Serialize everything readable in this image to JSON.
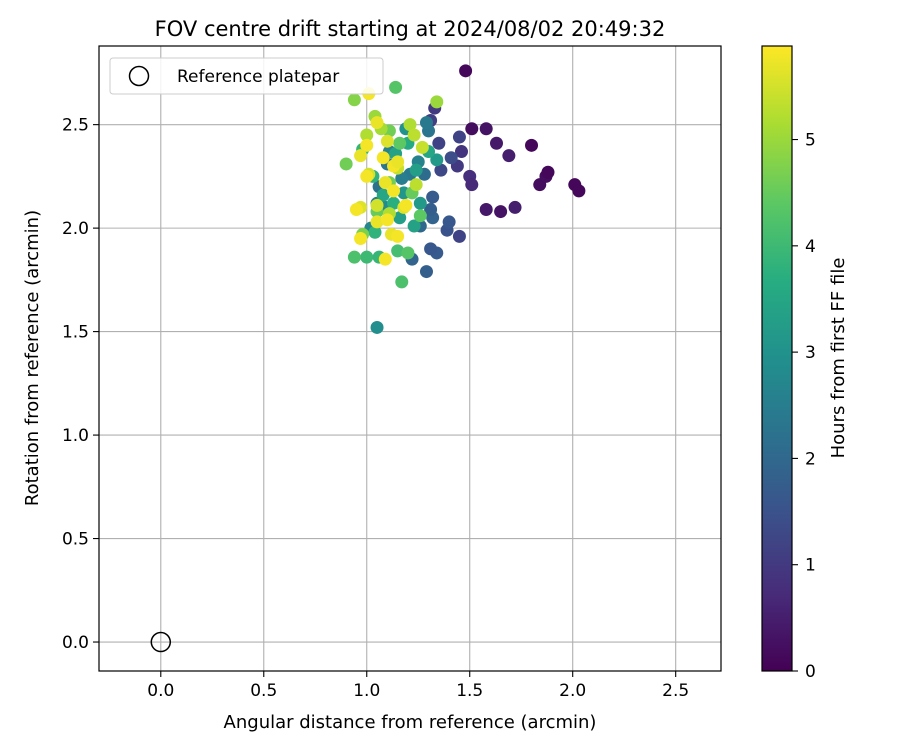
{
  "chart_data": {
    "type": "scatter",
    "title": "FOV centre drift starting at 2024/08/02 20:49:32",
    "xlabel": "Angular distance from reference (arcmin)",
    "ylabel": "Rotation from reference (arcmin)",
    "xlim": [
      -0.3,
      2.72
    ],
    "ylim": [
      -0.14,
      2.88
    ],
    "xticks": [
      0.0,
      0.5,
      1.0,
      1.5,
      2.0,
      2.5
    ],
    "yticks": [
      0.0,
      0.5,
      1.0,
      1.5,
      2.0,
      2.5
    ],
    "xtick_labels": [
      "0.0",
      "0.5",
      "1.0",
      "1.5",
      "2.0",
      "2.5"
    ],
    "ytick_labels": [
      "0.0",
      "0.5",
      "1.0",
      "1.5",
      "2.0",
      "2.5"
    ],
    "grid": true,
    "legend": {
      "position": "top-left",
      "entries": [
        "Reference platepar"
      ]
    },
    "colorbar": {
      "label": "Hours from first FF file",
      "colormap": "viridis",
      "range": [
        0,
        5.88
      ],
      "ticks": [
        0,
        1,
        2,
        3,
        4,
        5
      ],
      "tick_labels": [
        "0",
        "1",
        "2",
        "3",
        "4",
        "5"
      ]
    },
    "reference_point": {
      "x": 0.0,
      "y": 0.0,
      "name": "Reference platepar"
    },
    "points": [
      {
        "x": 1.48,
        "y": 2.76,
        "h": 0.1
      },
      {
        "x": 1.51,
        "y": 2.48,
        "h": 0.2
      },
      {
        "x": 1.58,
        "y": 2.48,
        "h": 0.3
      },
      {
        "x": 1.63,
        "y": 2.41,
        "h": 0.4
      },
      {
        "x": 1.69,
        "y": 2.35,
        "h": 0.5
      },
      {
        "x": 1.8,
        "y": 2.4,
        "h": 0.1
      },
      {
        "x": 1.84,
        "y": 2.21,
        "h": 0.2
      },
      {
        "x": 1.87,
        "y": 2.25,
        "h": 0.2
      },
      {
        "x": 1.88,
        "y": 2.27,
        "h": 0.1
      },
      {
        "x": 2.01,
        "y": 2.21,
        "h": 0.1
      },
      {
        "x": 2.03,
        "y": 2.18,
        "h": 0.1
      },
      {
        "x": 1.58,
        "y": 2.09,
        "h": 0.4
      },
      {
        "x": 1.65,
        "y": 2.08,
        "h": 0.3
      },
      {
        "x": 1.72,
        "y": 2.1,
        "h": 0.5
      },
      {
        "x": 1.5,
        "y": 2.25,
        "h": 0.8
      },
      {
        "x": 1.51,
        "y": 2.21,
        "h": 0.7
      },
      {
        "x": 1.46,
        "y": 2.37,
        "h": 0.9
      },
      {
        "x": 1.44,
        "y": 2.3,
        "h": 1.0
      },
      {
        "x": 1.45,
        "y": 2.44,
        "h": 1.2
      },
      {
        "x": 1.33,
        "y": 2.58,
        "h": 1.0
      },
      {
        "x": 1.31,
        "y": 2.52,
        "h": 1.1
      },
      {
        "x": 1.35,
        "y": 2.41,
        "h": 1.2
      },
      {
        "x": 1.36,
        "y": 2.28,
        "h": 1.3
      },
      {
        "x": 1.41,
        "y": 2.34,
        "h": 1.4
      },
      {
        "x": 1.45,
        "y": 1.96,
        "h": 1.2
      },
      {
        "x": 1.39,
        "y": 1.99,
        "h": 1.5
      },
      {
        "x": 1.4,
        "y": 2.03,
        "h": 1.6
      },
      {
        "x": 1.34,
        "y": 1.88,
        "h": 1.7
      },
      {
        "x": 1.31,
        "y": 1.9,
        "h": 1.6
      },
      {
        "x": 1.29,
        "y": 1.79,
        "h": 1.8
      },
      {
        "x": 1.22,
        "y": 1.85,
        "h": 1.9
      },
      {
        "x": 1.32,
        "y": 2.15,
        "h": 1.7
      },
      {
        "x": 1.26,
        "y": 2.01,
        "h": 2.0
      },
      {
        "x": 1.32,
        "y": 2.05,
        "h": 1.9
      },
      {
        "x": 1.31,
        "y": 2.09,
        "h": 1.8
      },
      {
        "x": 1.28,
        "y": 2.26,
        "h": 2.1
      },
      {
        "x": 1.3,
        "y": 2.47,
        "h": 2.3
      },
      {
        "x": 1.29,
        "y": 2.51,
        "h": 2.4
      },
      {
        "x": 1.25,
        "y": 2.32,
        "h": 2.6
      },
      {
        "x": 1.21,
        "y": 2.26,
        "h": 2.4
      },
      {
        "x": 1.17,
        "y": 2.24,
        "h": 2.5
      },
      {
        "x": 1.14,
        "y": 2.3,
        "h": 2.7
      },
      {
        "x": 1.1,
        "y": 2.31,
        "h": 2.3
      },
      {
        "x": 1.11,
        "y": 2.37,
        "h": 2.6
      },
      {
        "x": 1.06,
        "y": 2.2,
        "h": 2.2
      },
      {
        "x": 1.05,
        "y": 2.12,
        "h": 2.5
      },
      {
        "x": 1.09,
        "y": 2.1,
        "h": 2.8
      },
      {
        "x": 1.02,
        "y": 2.0,
        "h": 2.7
      },
      {
        "x": 1.05,
        "y": 1.52,
        "h": 2.9
      },
      {
        "x": 1.19,
        "y": 2.48,
        "h": 3.0
      },
      {
        "x": 1.26,
        "y": 2.12,
        "h": 3.2
      },
      {
        "x": 1.18,
        "y": 2.17,
        "h": 3.1
      },
      {
        "x": 1.16,
        "y": 2.05,
        "h": 3.3
      },
      {
        "x": 1.23,
        "y": 2.01,
        "h": 3.4
      },
      {
        "x": 1.34,
        "y": 2.33,
        "h": 3.2
      },
      {
        "x": 1.3,
        "y": 2.37,
        "h": 3.5
      },
      {
        "x": 1.24,
        "y": 2.28,
        "h": 3.3
      },
      {
        "x": 1.2,
        "y": 2.41,
        "h": 3.6
      },
      {
        "x": 1.14,
        "y": 2.36,
        "h": 3.4
      },
      {
        "x": 1.13,
        "y": 2.12,
        "h": 3.7
      },
      {
        "x": 1.08,
        "y": 2.16,
        "h": 3.5
      },
      {
        "x": 1.03,
        "y": 2.25,
        "h": 3.8
      },
      {
        "x": 0.98,
        "y": 2.38,
        "h": 3.9
      },
      {
        "x": 1.04,
        "y": 1.98,
        "h": 3.8
      },
      {
        "x": 1.0,
        "y": 1.86,
        "h": 4.0
      },
      {
        "x": 0.94,
        "y": 1.86,
        "h": 4.2
      },
      {
        "x": 1.06,
        "y": 1.86,
        "h": 3.9
      },
      {
        "x": 1.15,
        "y": 1.89,
        "h": 4.1
      },
      {
        "x": 1.2,
        "y": 1.88,
        "h": 4.3
      },
      {
        "x": 1.17,
        "y": 1.74,
        "h": 4.2
      },
      {
        "x": 1.14,
        "y": 2.68,
        "h": 4.3
      },
      {
        "x": 1.16,
        "y": 2.41,
        "h": 4.4
      },
      {
        "x": 1.22,
        "y": 2.17,
        "h": 4.5
      },
      {
        "x": 1.26,
        "y": 2.06,
        "h": 4.4
      },
      {
        "x": 1.11,
        "y": 2.22,
        "h": 4.6
      },
      {
        "x": 1.05,
        "y": 2.08,
        "h": 4.5
      },
      {
        "x": 0.98,
        "y": 1.97,
        "h": 4.7
      },
      {
        "x": 1.11,
        "y": 2.47,
        "h": 4.6
      },
      {
        "x": 0.9,
        "y": 2.31,
        "h": 4.6
      },
      {
        "x": 0.94,
        "y": 2.62,
        "h": 4.8
      },
      {
        "x": 1.04,
        "y": 2.54,
        "h": 5.0
      },
      {
        "x": 1.07,
        "y": 2.48,
        "h": 5.1
      },
      {
        "x": 1.0,
        "y": 2.45,
        "h": 5.2
      },
      {
        "x": 1.21,
        "y": 2.5,
        "h": 5.2
      },
      {
        "x": 1.34,
        "y": 2.61,
        "h": 5.0
      },
      {
        "x": 1.23,
        "y": 2.45,
        "h": 5.3
      },
      {
        "x": 1.27,
        "y": 2.39,
        "h": 5.4
      },
      {
        "x": 1.15,
        "y": 2.29,
        "h": 5.4
      },
      {
        "x": 1.24,
        "y": 2.21,
        "h": 5.3
      },
      {
        "x": 1.01,
        "y": 2.26,
        "h": 5.5
      },
      {
        "x": 1.05,
        "y": 2.11,
        "h": 5.5
      },
      {
        "x": 1.18,
        "y": 2.1,
        "h": 5.6
      },
      {
        "x": 1.11,
        "y": 2.07,
        "h": 5.2
      },
      {
        "x": 0.97,
        "y": 2.1,
        "h": 5.6
      },
      {
        "x": 1.01,
        "y": 2.65,
        "h": 5.8
      },
      {
        "x": 1.05,
        "y": 2.51,
        "h": 5.7
      },
      {
        "x": 1.0,
        "y": 2.4,
        "h": 5.8
      },
      {
        "x": 0.97,
        "y": 2.35,
        "h": 5.7
      },
      {
        "x": 1.08,
        "y": 2.34,
        "h": 5.8
      },
      {
        "x": 1.1,
        "y": 2.42,
        "h": 5.6
      },
      {
        "x": 1.13,
        "y": 2.3,
        "h": 5.8
      },
      {
        "x": 1.15,
        "y": 2.32,
        "h": 5.7
      },
      {
        "x": 1.0,
        "y": 2.25,
        "h": 5.8
      },
      {
        "x": 1.09,
        "y": 2.22,
        "h": 5.7
      },
      {
        "x": 1.13,
        "y": 2.18,
        "h": 5.8
      },
      {
        "x": 1.19,
        "y": 2.11,
        "h": 5.8
      },
      {
        "x": 1.05,
        "y": 2.03,
        "h": 5.7
      },
      {
        "x": 0.95,
        "y": 2.09,
        "h": 5.8
      },
      {
        "x": 1.1,
        "y": 2.04,
        "h": 5.8
      },
      {
        "x": 1.12,
        "y": 1.97,
        "h": 5.7
      },
      {
        "x": 1.15,
        "y": 1.96,
        "h": 5.8
      },
      {
        "x": 0.97,
        "y": 1.95,
        "h": 5.8
      },
      {
        "x": 1.09,
        "y": 1.85,
        "h": 5.8
      }
    ]
  }
}
